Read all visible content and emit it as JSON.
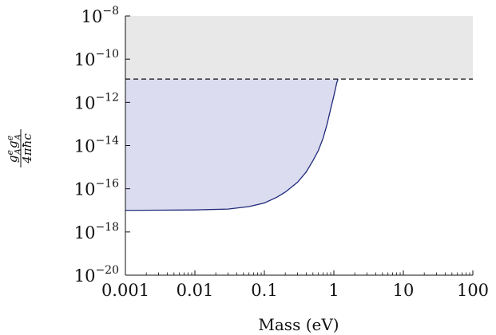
{
  "chart_data": {
    "type": "area",
    "xlabel": "Mass (eV)",
    "ylabel": {
      "numerator": "g_A^e g_A^e",
      "denominator": "4πħc",
      "numerator_main": "g",
      "numerator_sup": "e",
      "numerator_sub": "A",
      "denominator_text": "4πħc"
    },
    "x_scale": "log",
    "y_scale": "log",
    "xlim": [
      0.001,
      100
    ],
    "ylim": [
      1e-20,
      1e-08
    ],
    "x_ticks": [
      0.001,
      0.01,
      0.1,
      1,
      10,
      100
    ],
    "x_tick_labels": [
      "0.001",
      "0.01",
      "0.1",
      "1",
      "10",
      "100"
    ],
    "y_ticks": [
      1e-20,
      1e-18,
      1e-16,
      1e-14,
      1e-12,
      1e-10,
      1e-08
    ],
    "y_tick_labels": [
      {
        "base": "10",
        "exp": "−20"
      },
      {
        "base": "10",
        "exp": "−18"
      },
      {
        "base": "10",
        "exp": "−16"
      },
      {
        "base": "10",
        "exp": "−14"
      },
      {
        "base": "10",
        "exp": "−12"
      },
      {
        "base": "10",
        "exp": "−10"
      },
      {
        "base": "10",
        "exp": "−8"
      }
    ],
    "series": [
      {
        "kind": "excluded-region-curve",
        "color": "#1f2a7a",
        "fill": "#dcdcf0",
        "x": [
          0.001,
          0.003,
          0.01,
          0.03,
          0.06,
          0.1,
          0.15,
          0.2,
          0.3,
          0.4,
          0.5,
          0.6,
          0.7,
          0.8,
          0.9,
          1.0,
          1.1,
          1.15
        ],
        "y": [
          1e-17,
          1.02e-17,
          1.05e-17,
          1.15e-17,
          1.5e-17,
          2.2e-17,
          4e-17,
          7e-17,
          2e-16,
          6e-16,
          2e-15,
          6e-15,
          2.2e-14,
          1e-13,
          5e-13,
          2e-12,
          8e-12,
          1.2e-11
        ]
      },
      {
        "kind": "upper-limit-line",
        "color": "#111111",
        "dash": true,
        "fill": "#e8e8e8",
        "y": 1.2e-11
      }
    ],
    "grid": false,
    "legend": "none",
    "colors": {
      "upper_region": "#e8e8e8",
      "lower_region": "#dcdcf0",
      "curve": "#1f2a7a",
      "dashed_line": "#111111",
      "axis": "#111111"
    }
  }
}
